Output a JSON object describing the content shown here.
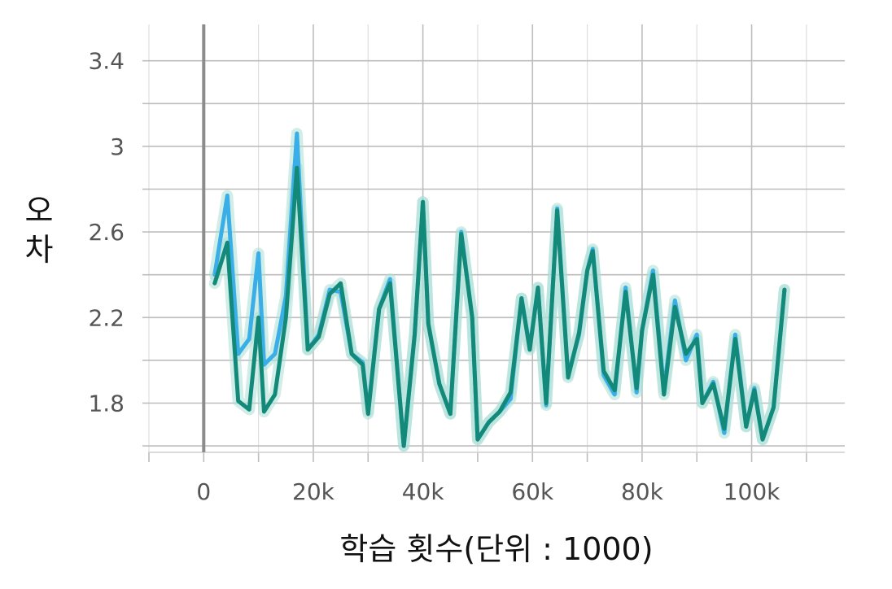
{
  "chart_data": {
    "type": "line",
    "title": "",
    "xlabel": "학습 횟수(단위 : 1000)",
    "ylabel": "오차",
    "xlim": [
      -10000,
      117000
    ],
    "ylim": [
      1.57,
      3.57
    ],
    "x_ticks": [
      0,
      20000,
      40000,
      60000,
      80000,
      100000
    ],
    "x_tick_labels": [
      "0",
      "20k",
      "40k",
      "60k",
      "80k",
      "100k"
    ],
    "y_ticks": [
      1.8,
      2.2,
      2.6,
      3.0,
      3.4
    ],
    "y_tick_labels": [
      "1.8",
      "2.2",
      "2.6",
      "3",
      "3.4"
    ],
    "grid": true,
    "legend": "none",
    "colors": {
      "series1": "#3aaee6",
      "series2": "#13897a",
      "band": "#a9dfd6",
      "zero_line": "#8c8c8c"
    },
    "x": [
      2000,
      4300,
      6300,
      8300,
      10000,
      11000,
      13000,
      15000,
      17000,
      19000,
      21000,
      23000,
      25000,
      27000,
      29000,
      30000,
      32000,
      34000,
      36500,
      38500,
      40000,
      41000,
      43000,
      45000,
      47000,
      49000,
      50000,
      52000,
      54000,
      56000,
      58000,
      59500,
      61000,
      62500,
      64500,
      66500,
      68500,
      70000,
      71000,
      73000,
      75000,
      77000,
      79000,
      80000,
      82000,
      84000,
      86000,
      88000,
      90000,
      91000,
      93000,
      95000,
      97000,
      99000,
      100500,
      102000,
      104000,
      106000
    ],
    "series": [
      {
        "name": "",
        "values": [
          2.4,
          2.77,
          2.03,
          2.1,
          2.5,
          1.98,
          2.03,
          2.3,
          3.06,
          2.05,
          2.12,
          2.33,
          2.32,
          2.03,
          1.99,
          1.76,
          2.24,
          2.38,
          1.6,
          2.12,
          2.74,
          2.17,
          1.89,
          1.75,
          2.6,
          2.2,
          1.63,
          1.71,
          1.76,
          1.82,
          2.29,
          2.06,
          2.34,
          1.79,
          2.71,
          1.93,
          2.12,
          2.42,
          2.52,
          1.93,
          1.84,
          2.34,
          1.85,
          2.14,
          2.42,
          1.86,
          2.28,
          2.0,
          2.12,
          1.8,
          1.9,
          1.66,
          2.12,
          1.69,
          1.87,
          1.63,
          1.78,
          2.33
        ]
      },
      {
        "name": "",
        "values": [
          2.36,
          2.55,
          1.81,
          1.77,
          2.2,
          1.76,
          1.84,
          2.2,
          2.9,
          2.05,
          2.11,
          2.31,
          2.36,
          2.03,
          1.98,
          1.75,
          2.24,
          2.36,
          1.6,
          2.12,
          2.74,
          2.17,
          1.89,
          1.75,
          2.59,
          2.2,
          1.63,
          1.71,
          1.76,
          1.85,
          2.29,
          2.05,
          2.34,
          1.8,
          2.7,
          1.92,
          2.13,
          2.42,
          2.51,
          1.95,
          1.86,
          2.32,
          1.87,
          2.14,
          2.4,
          1.84,
          2.25,
          2.03,
          2.1,
          1.8,
          1.89,
          1.68,
          2.1,
          1.69,
          1.86,
          1.63,
          1.78,
          2.33
        ]
      }
    ]
  }
}
